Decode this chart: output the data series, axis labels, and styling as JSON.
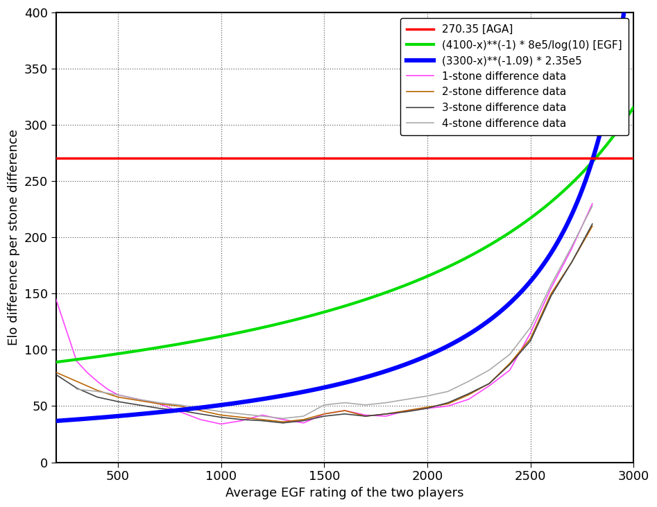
{
  "xlabel": "Average EGF rating of the two players",
  "ylabel": "Elo difference per stone difference",
  "xlim": [
    200,
    3000
  ],
  "ylim": [
    0,
    400
  ],
  "xticks": [
    500,
    1000,
    1500,
    2000,
    2500,
    3000
  ],
  "yticks": [
    0,
    50,
    100,
    150,
    200,
    250,
    300,
    350,
    400
  ],
  "aga_value": 270.35,
  "aga_color": "#ff0000",
  "aga_label": "270.35 [AGA]",
  "egf_color": "#00dd00",
  "egf_label": "(4100-x)**(-1) * 8e5/log(10) [EGF]",
  "blue_color": "#0000ff",
  "blue_label": "(3300-x)**(-1.09) * 2.35e5",
  "stone1_color": "#ff44ff",
  "stone1_label": "1-stone difference data",
  "stone2_color": "#bb6600",
  "stone2_label": "2-stone difference data",
  "stone3_color": "#444444",
  "stone3_label": "3-stone difference data",
  "stone4_color": "#aaaaaa",
  "stone4_label": "4-stone difference data",
  "background_color": "#ffffff"
}
